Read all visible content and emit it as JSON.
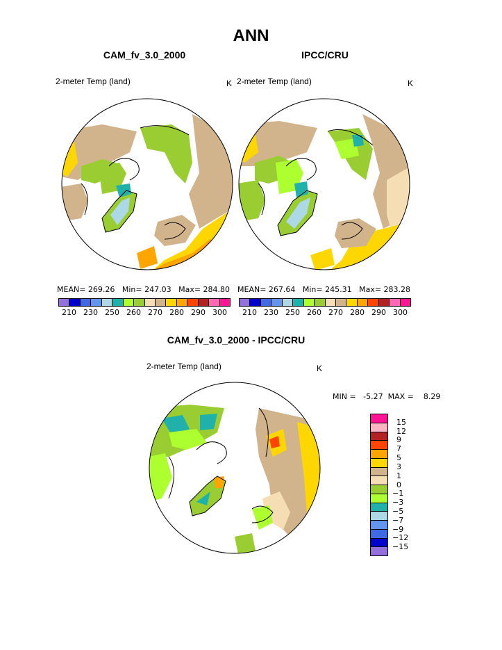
{
  "page_title": "ANN",
  "panels": [
    {
      "title": "CAM_fv_3.0_2000",
      "field": "2-meter Temp (land)",
      "units": "K",
      "stats": "MEAN= 269.26   Min= 247.03   Max= 284.80"
    },
    {
      "title": "IPCC/CRU",
      "field": "2-meter Temp (land)",
      "units": "K",
      "stats": "MEAN= 267.64   Min= 245.31   Max= 283.28"
    }
  ],
  "diff_panel": {
    "title": "CAM_fv_3.0_2000 - IPCC/CRU",
    "field": "2-meter Temp (land)",
    "units": "K",
    "stats": "MIN =   -5.27  MAX =    8.29"
  },
  "abs_colorbar": {
    "colors": [
      "#9370db",
      "#0000cd",
      "#4169e1",
      "#6495ed",
      "#add8e6",
      "#20b2aa",
      "#adff2f",
      "#9acd32",
      "#f5deb3",
      "#d2b48c",
      "#ffd700",
      "#ffa500",
      "#ff4500",
      "#b22222",
      "#ff69b4",
      "#ff1493"
    ],
    "tick_labels": [
      "210",
      "230",
      "250",
      "260",
      "270",
      "280",
      "290",
      "300"
    ]
  },
  "diff_colorbar": {
    "colors": [
      "#ff1493",
      "#ffb6c1",
      "#b22222",
      "#ff4500",
      "#ffa500",
      "#ffd700",
      "#d2b48c",
      "#f5deb3",
      "#9acd32",
      "#adff2f",
      "#20b2aa",
      "#add8e6",
      "#6495ed",
      "#4169e1",
      "#0000cd",
      "#9370db"
    ],
    "tick_labels": [
      "15",
      "12",
      "9",
      "7",
      "5",
      "3",
      "1",
      "0",
      "−1",
      "−3",
      "−5",
      "−7",
      "−9",
      "−12",
      "−15"
    ]
  },
  "map_colors": {
    "ocean": "#ffffff",
    "coast": "#000000",
    "cold_land": "#9acd32",
    "mid_land": "#d2b48c",
    "warm_land": "#ffd700",
    "hot_land": "#ffa500",
    "greenland_cold": "#add8e6",
    "greenland_edge": "#20b2aa",
    "light_green": "#adff2f",
    "light_tan": "#f5deb3",
    "red": "#ff4500"
  }
}
